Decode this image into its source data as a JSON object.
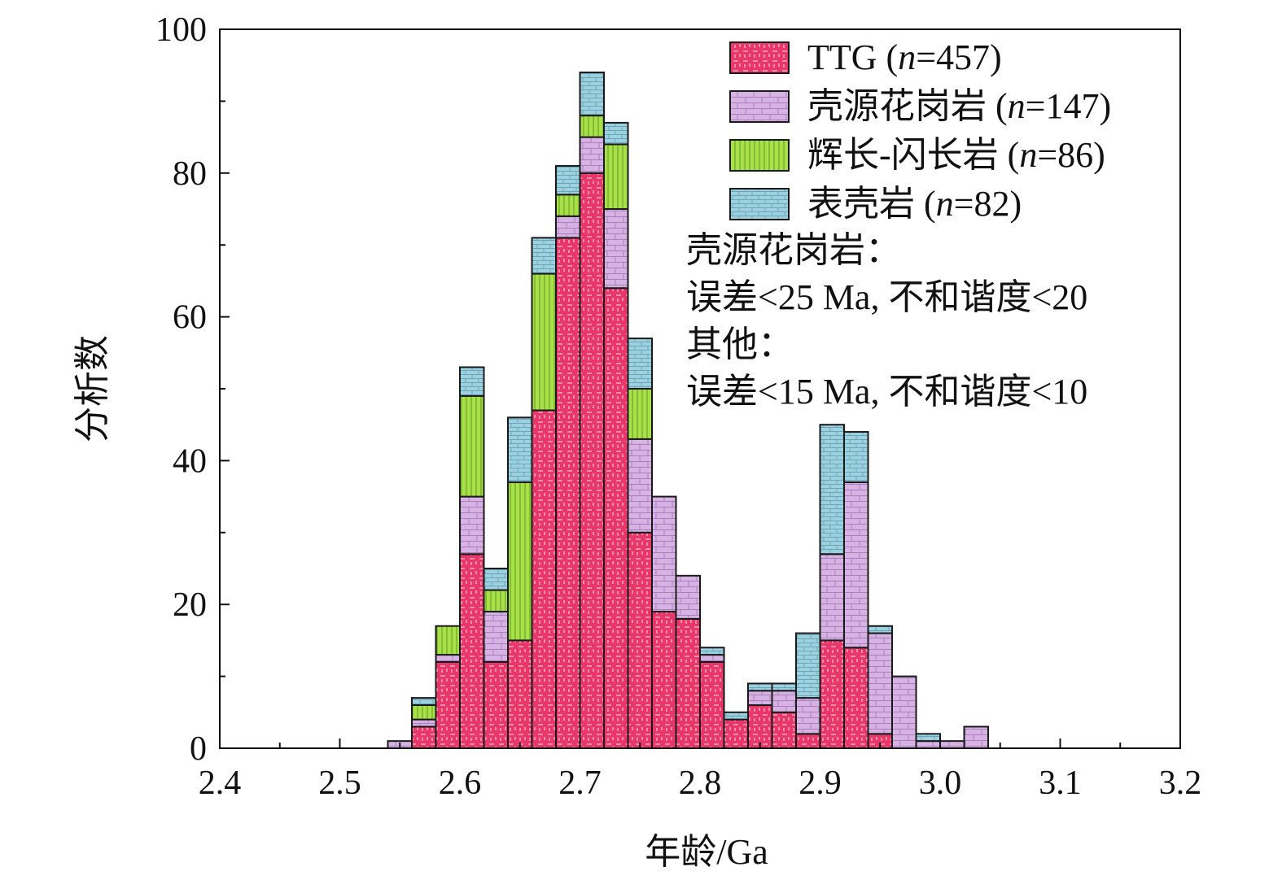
{
  "chart_data": {
    "type": "bar",
    "stacked": true,
    "xlabel": "年龄/Ga",
    "ylabel": "分析数",
    "xlim": [
      2.4,
      3.2
    ],
    "ylim": [
      0,
      100
    ],
    "x_ticks": [
      "2.4",
      "2.5",
      "2.6",
      "2.7",
      "2.8",
      "2.9",
      "3.0",
      "3.1",
      "3.2"
    ],
    "y_ticks": [
      "0",
      "20",
      "40",
      "60",
      "80",
      "100"
    ],
    "bin_width": 0.02,
    "bin_starts": [
      2.54,
      2.56,
      2.58,
      2.6,
      2.62,
      2.64,
      2.66,
      2.68,
      2.7,
      2.72,
      2.74,
      2.76,
      2.78,
      2.8,
      2.82,
      2.84,
      2.86,
      2.88,
      2.9,
      2.92,
      2.94,
      2.96,
      2.98,
      3.0,
      3.02
    ],
    "legend_position": "top-right",
    "series": [
      {
        "name": "TTG",
        "n_label": "(n=457)",
        "color": "#e8376a",
        "values": [
          0,
          3,
          12,
          27,
          12,
          15,
          47,
          71,
          80,
          64,
          30,
          19,
          18,
          12,
          4,
          6,
          5,
          2,
          15,
          14,
          2,
          0,
          0,
          0,
          0
        ]
      },
      {
        "name": "壳源花岗岩",
        "n_label": "(n=147)",
        "color": "#d7b3e3",
        "values": [
          1,
          1,
          1,
          8,
          7,
          0,
          0,
          3,
          5,
          11,
          13,
          16,
          6,
          1,
          0,
          2,
          3,
          5,
          12,
          23,
          14,
          10,
          1,
          1,
          3
        ]
      },
      {
        "name": "辉长-闪长岩",
        "n_label": "(n=86)",
        "color": "#a8e04a",
        "values": [
          0,
          2,
          4,
          14,
          3,
          22,
          19,
          3,
          3,
          9,
          7,
          0,
          0,
          0,
          0,
          0,
          0,
          0,
          0,
          0,
          0,
          0,
          0,
          0,
          0
        ]
      },
      {
        "name": "表壳岩",
        "n_label": "(n=82)",
        "color": "#9ed1df",
        "values": [
          0,
          1,
          0,
          4,
          3,
          9,
          5,
          4,
          6,
          3,
          7,
          0,
          0,
          1,
          1,
          1,
          1,
          9,
          18,
          7,
          1,
          0,
          1,
          0,
          0
        ]
      }
    ],
    "annotations": [
      "壳源花岗岩：",
      "误差<25 Ma, 不和谐度<20",
      "其他：",
      "误差<15 Ma, 不和谐度<10"
    ]
  }
}
